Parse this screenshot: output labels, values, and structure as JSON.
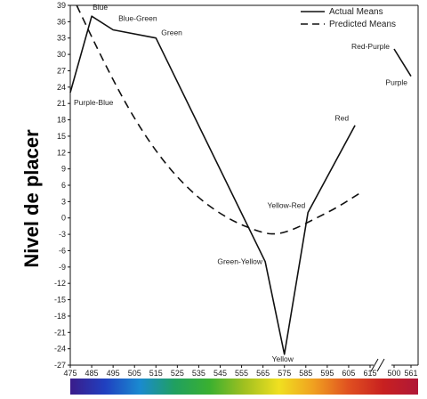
{
  "chart_data": {
    "type": "line",
    "ylabel": "Nivel de placer",
    "ylim": [
      -27,
      39
    ],
    "yticks": [
      39,
      36,
      33,
      30,
      27,
      24,
      21,
      18,
      15,
      12,
      9,
      6,
      3,
      0,
      -3,
      -6,
      -9,
      -12,
      -15,
      -18,
      -21,
      -24,
      -27
    ],
    "xticks_main": [
      "475",
      "485",
      "495",
      "505",
      "515",
      "525",
      "535",
      "545",
      "555",
      "565",
      "575",
      "585",
      "595",
      "605",
      "615"
    ],
    "xticks_break": [
      "500",
      "561"
    ],
    "legend": {
      "position": "top-right",
      "actual": "Actual Means",
      "predicted": "Predicted Means"
    },
    "series": [
      {
        "name": "Actual Means",
        "style": "solid",
        "segments": [
          [
            {
              "x": 475,
              "y": 23,
              "label": "Purple-Blue"
            },
            {
              "x": 485,
              "y": 37,
              "label": "Blue"
            },
            {
              "x": 495,
              "y": 34.5,
              "label": "Blue-Green"
            },
            {
              "x": 515,
              "y": 33,
              "label": "Green"
            },
            {
              "x": 566,
              "y": -8,
              "label": "Green-Yellow"
            },
            {
              "x": 575,
              "y": -25,
              "label": "Yellow"
            },
            {
              "x": 586,
              "y": 1,
              "label": "Yellow-Red"
            },
            {
              "x": 608,
              "y": 17,
              "label": "Red"
            }
          ],
          [
            {
              "x": "500",
              "y": 31,
              "label": "Red-Purple"
            },
            {
              "x": "561",
              "y": 26,
              "label": "Purple"
            }
          ]
        ]
      },
      {
        "name": "Predicted Means",
        "style": "dashed",
        "points": [
          {
            "x": 478,
            "y": 39
          },
          {
            "x": 490,
            "y": 29
          },
          {
            "x": 505,
            "y": 18
          },
          {
            "x": 520,
            "y": 9.5
          },
          {
            "x": 535,
            "y": 3.5
          },
          {
            "x": 550,
            "y": -0.5
          },
          {
            "x": 565,
            "y": -2.8
          },
          {
            "x": 572,
            "y": -3
          },
          {
            "x": 580,
            "y": -2
          },
          {
            "x": 590,
            "y": 0
          },
          {
            "x": 600,
            "y": 2
          },
          {
            "x": 610,
            "y": 4.5
          }
        ]
      }
    ],
    "spectrum_colors": [
      "#3a1c8a",
      "#2040c0",
      "#1a8ad0",
      "#20a060",
      "#3ab030",
      "#a0c020",
      "#f0e020",
      "#f0a020",
      "#e05020",
      "#c82020",
      "#b01838"
    ]
  }
}
